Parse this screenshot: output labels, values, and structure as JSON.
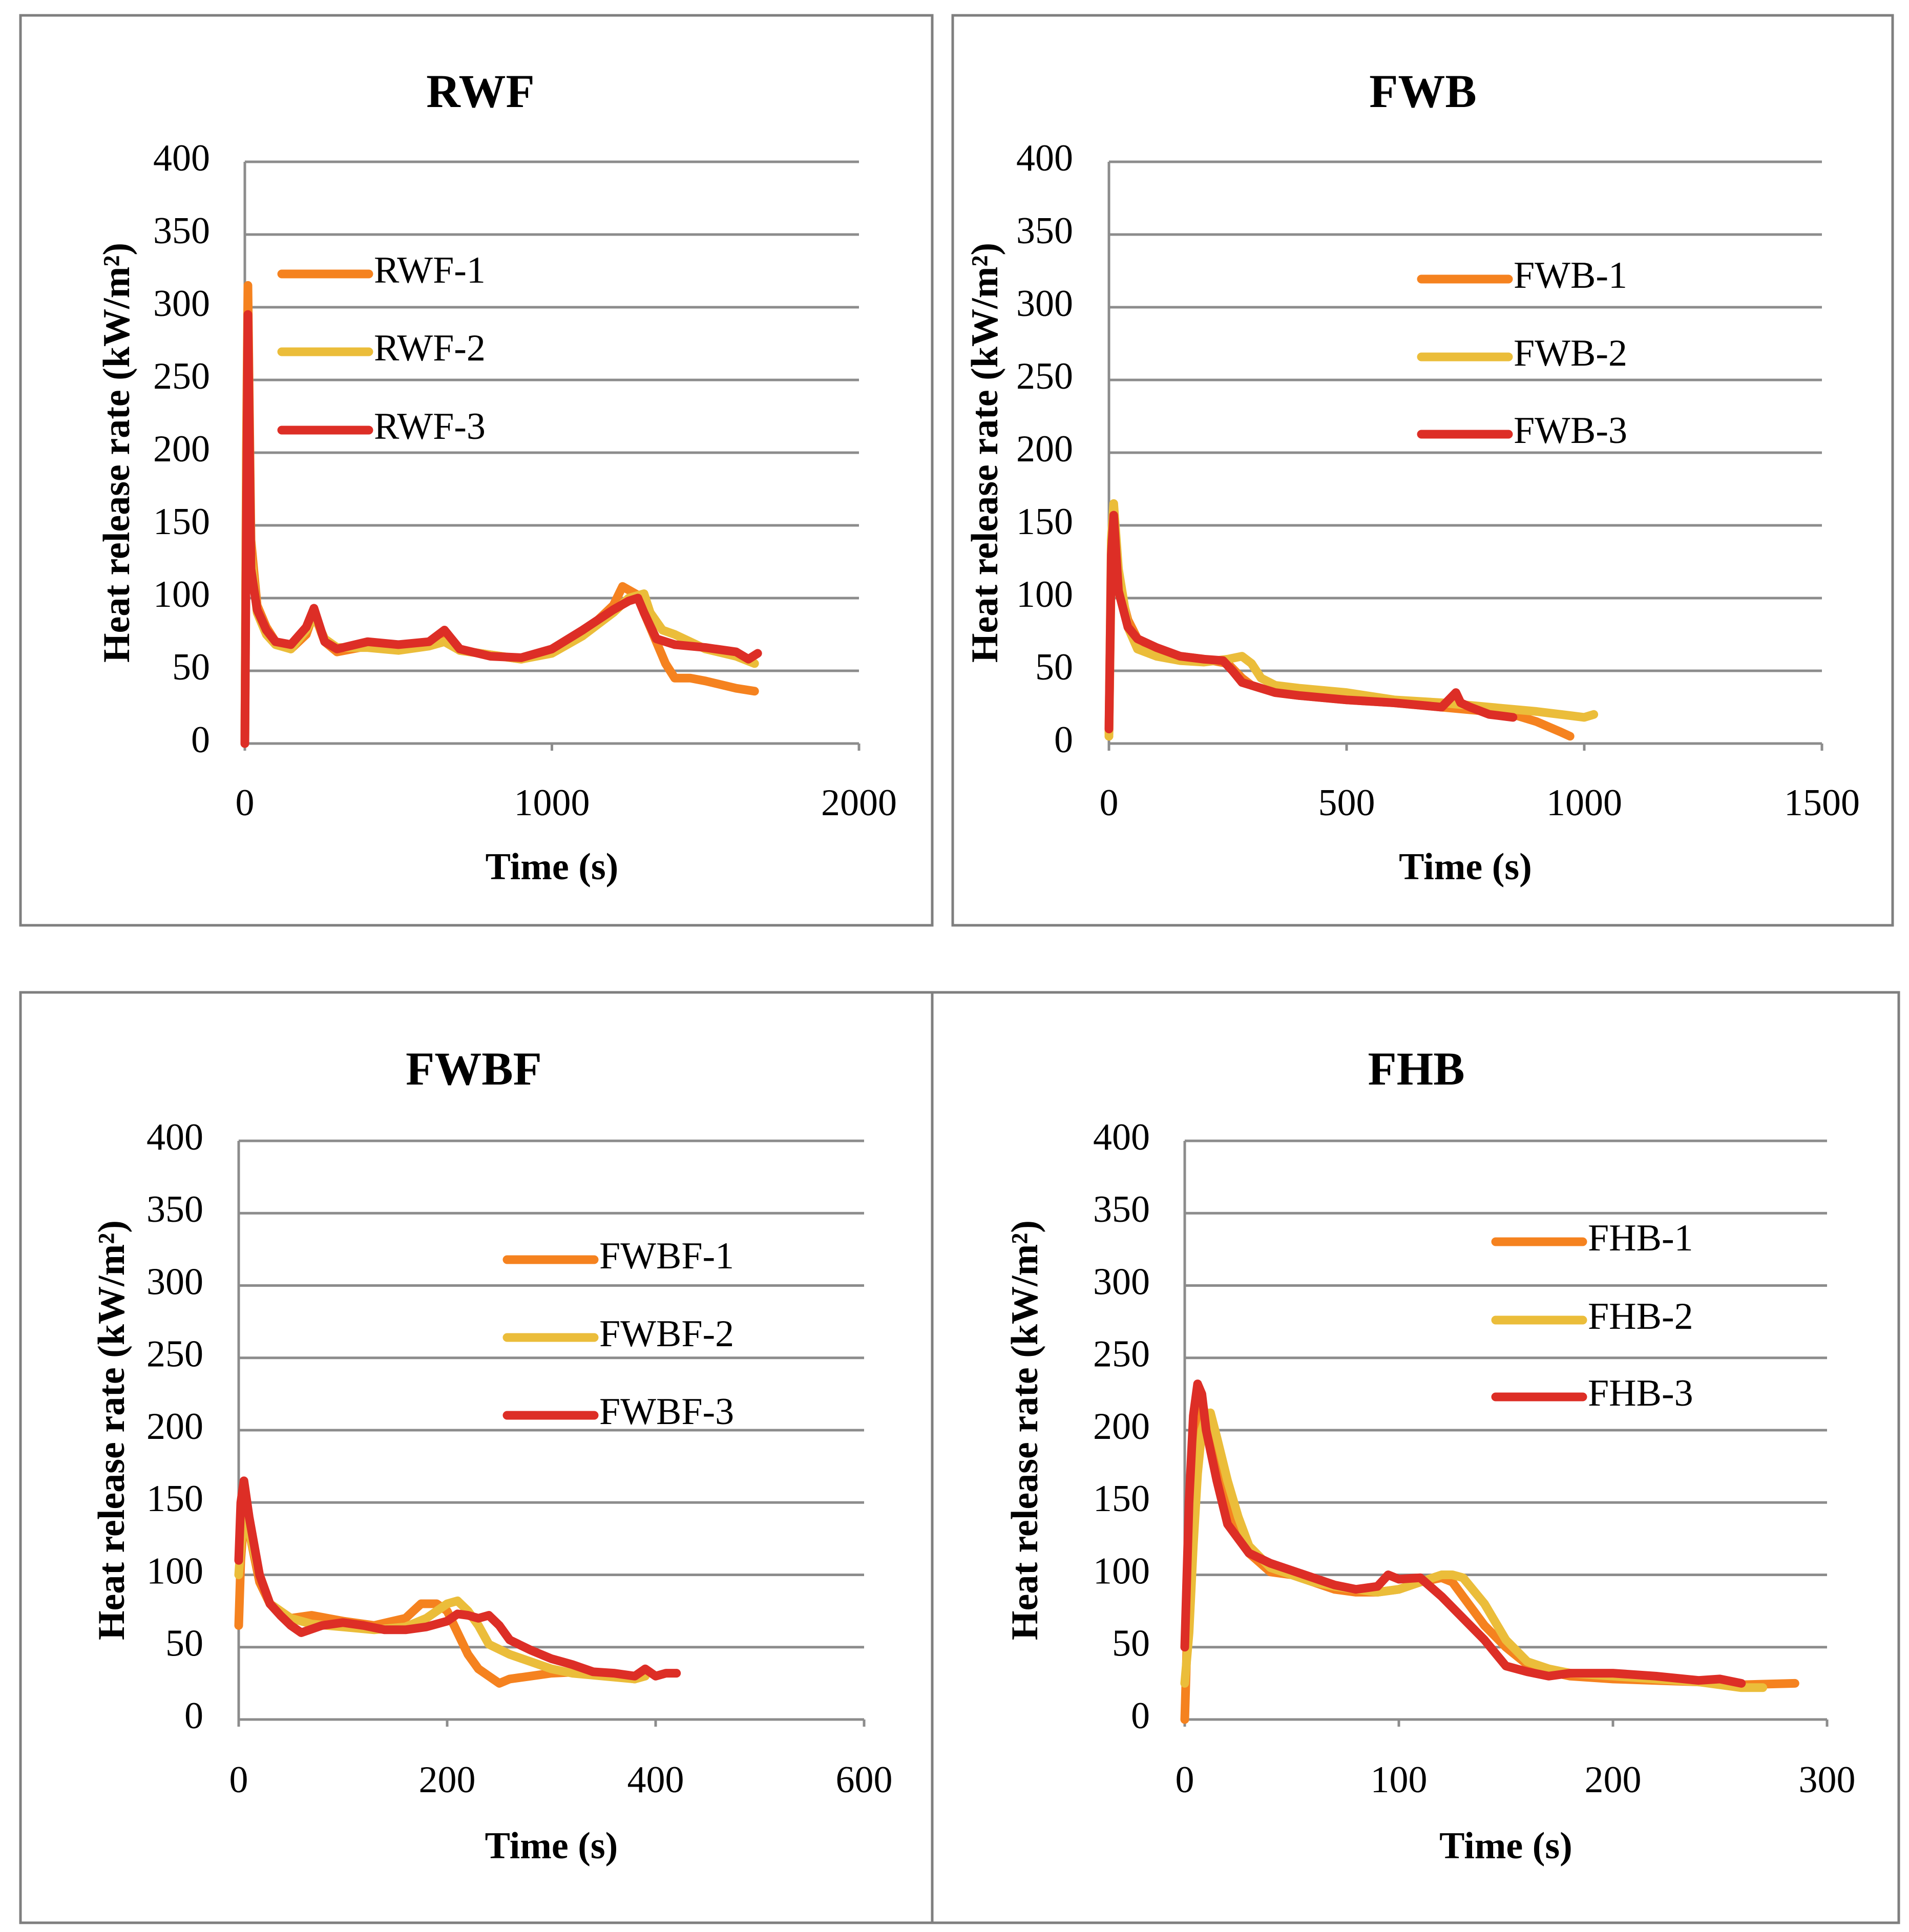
{
  "colors": {
    "series_1": "#f5821f",
    "series_2": "#ebbd3a",
    "series_3": "#dd2e26"
  },
  "chart_data": [
    {
      "type": "line",
      "title": "RWF",
      "xlabel": "Time (s)",
      "ylabel": "Heat release rate (kW/m²)",
      "xlim": [
        0,
        2000
      ],
      "ylim": [
        0,
        400
      ],
      "xticks": [
        0,
        1000,
        2000
      ],
      "yticks": [
        0,
        50,
        100,
        150,
        200,
        250,
        300,
        350,
        400
      ],
      "grid": true,
      "legend": "top-left",
      "series": [
        {
          "name": "RWF-1",
          "x": [
            0,
            5,
            10,
            20,
            40,
            70,
            100,
            150,
            200,
            225,
            260,
            300,
            400,
            500,
            600,
            650,
            700,
            800,
            900,
            1000,
            1100,
            1200,
            1230,
            1280,
            1300,
            1340,
            1370,
            1400,
            1450,
            1500,
            1600,
            1660
          ],
          "y": [
            0,
            200,
            315,
            140,
            95,
            80,
            70,
            65,
            75,
            90,
            70,
            63,
            67,
            66,
            68,
            72,
            64,
            61,
            58,
            63,
            75,
            95,
            108,
            102,
            90,
            70,
            55,
            45,
            45,
            43,
            38,
            36
          ]
        },
        {
          "name": "RWF-2",
          "x": [
            0,
            5,
            10,
            20,
            40,
            70,
            100,
            150,
            200,
            225,
            260,
            300,
            400,
            500,
            600,
            650,
            700,
            800,
            900,
            1000,
            1100,
            1200,
            1250,
            1300,
            1320,
            1360,
            1400,
            1450,
            1500,
            1600,
            1660
          ],
          "y": [
            0,
            180,
            290,
            130,
            90,
            75,
            68,
            65,
            78,
            88,
            72,
            66,
            66,
            64,
            67,
            70,
            64,
            61,
            58,
            62,
            74,
            90,
            100,
            103,
            90,
            78,
            75,
            70,
            65,
            60,
            55
          ]
        },
        {
          "name": "RWF-3",
          "x": [
            0,
            5,
            10,
            20,
            40,
            70,
            100,
            150,
            200,
            225,
            260,
            300,
            400,
            500,
            600,
            650,
            700,
            800,
            900,
            1000,
            1100,
            1200,
            1250,
            1280,
            1300,
            1340,
            1400,
            1500,
            1600,
            1640,
            1670
          ],
          "y": [
            0,
            150,
            295,
            120,
            92,
            78,
            70,
            68,
            80,
            93,
            70,
            65,
            70,
            68,
            70,
            78,
            65,
            60,
            59,
            65,
            78,
            92,
            98,
            100,
            90,
            72,
            68,
            66,
            63,
            58,
            62
          ]
        }
      ]
    },
    {
      "type": "line",
      "title": "FWB",
      "xlabel": "Time (s)",
      "ylabel": "Heat release rate (kW/m²)",
      "xlim": [
        0,
        1500
      ],
      "ylim": [
        0,
        400
      ],
      "xticks": [
        0,
        500,
        1000,
        1500
      ],
      "yticks": [
        0,
        50,
        100,
        150,
        200,
        250,
        300,
        350,
        400
      ],
      "grid": true,
      "legend": "top-right",
      "series": [
        {
          "name": "FWB-1",
          "x": [
            0,
            5,
            10,
            20,
            40,
            60,
            100,
            150,
            200,
            250,
            280,
            300,
            350,
            400,
            500,
            600,
            700,
            800,
            850,
            900,
            950,
            970
          ],
          "y": [
            5,
            120,
            150,
            110,
            85,
            72,
            65,
            60,
            58,
            55,
            45,
            40,
            35,
            33,
            30,
            28,
            25,
            22,
            20,
            15,
            8,
            5
          ]
        },
        {
          "name": "FWB-2",
          "x": [
            0,
            5,
            10,
            20,
            40,
            60,
            100,
            150,
            200,
            250,
            280,
            300,
            320,
            350,
            400,
            500,
            600,
            700,
            800,
            900,
            950,
            1000,
            1020
          ],
          "y": [
            5,
            140,
            165,
            120,
            80,
            65,
            60,
            57,
            56,
            58,
            60,
            55,
            45,
            40,
            38,
            35,
            30,
            28,
            25,
            22,
            20,
            18,
            20
          ]
        },
        {
          "name": "FWB-3",
          "x": [
            0,
            5,
            10,
            20,
            40,
            60,
            100,
            150,
            200,
            240,
            260,
            280,
            300,
            350,
            400,
            500,
            600,
            700,
            730,
            740,
            760,
            800,
            850
          ],
          "y": [
            10,
            130,
            157,
            105,
            80,
            72,
            66,
            60,
            58,
            57,
            50,
            42,
            40,
            35,
            33,
            30,
            28,
            25,
            35,
            28,
            25,
            20,
            18
          ]
        }
      ]
    },
    {
      "type": "line",
      "title": "FWBF",
      "xlabel": "Time (s)",
      "ylabel": "Heat release rate (kW/m²)",
      "xlim": [
        0,
        600
      ],
      "ylim": [
        0,
        400
      ],
      "xticks": [
        0,
        200,
        400,
        600
      ],
      "yticks": [
        0,
        50,
        100,
        150,
        200,
        250,
        300,
        350,
        400
      ],
      "grid": true,
      "legend": "top-right",
      "series": [
        {
          "name": "FWBF-1",
          "x": [
            0,
            2,
            5,
            10,
            20,
            30,
            50,
            70,
            100,
            130,
            160,
            175,
            190,
            200,
            210,
            220,
            230,
            240,
            250,
            260,
            280,
            300,
            330,
            360,
            380
          ],
          "y": [
            65,
            110,
            140,
            130,
            95,
            80,
            70,
            72,
            68,
            65,
            70,
            80,
            80,
            75,
            60,
            45,
            35,
            30,
            25,
            28,
            30,
            32,
            33,
            30,
            28
          ]
        },
        {
          "name": "FWBF-2",
          "x": [
            0,
            2,
            5,
            10,
            20,
            30,
            50,
            70,
            100,
            130,
            160,
            180,
            200,
            210,
            220,
            230,
            240,
            260,
            280,
            300,
            320,
            350,
            380,
            390
          ],
          "y": [
            100,
            120,
            140,
            130,
            100,
            80,
            70,
            66,
            64,
            62,
            64,
            70,
            80,
            82,
            75,
            65,
            52,
            45,
            40,
            35,
            32,
            30,
            28,
            30
          ]
        },
        {
          "name": "FWBF-3",
          "x": [
            0,
            2,
            5,
            10,
            20,
            30,
            40,
            50,
            60,
            80,
            100,
            120,
            140,
            160,
            180,
            200,
            210,
            220,
            230,
            240,
            250,
            260,
            280,
            300,
            320,
            340,
            360,
            380,
            390,
            400,
            410,
            420
          ],
          "y": [
            110,
            150,
            165,
            140,
            100,
            80,
            72,
            65,
            60,
            65,
            67,
            65,
            62,
            62,
            64,
            68,
            73,
            72,
            70,
            72,
            65,
            55,
            48,
            42,
            38,
            33,
            32,
            30,
            35,
            30,
            32,
            32
          ]
        }
      ]
    },
    {
      "type": "line",
      "title": "FHB",
      "xlabel": "Time (s)",
      "ylabel": "Heat release rate (kW/m²)",
      "xlim": [
        0,
        300
      ],
      "ylim": [
        0,
        400
      ],
      "xticks": [
        0,
        100,
        200,
        300
      ],
      "yticks": [
        0,
        50,
        100,
        150,
        200,
        250,
        300,
        350,
        400
      ],
      "grid": true,
      "legend": "top-right",
      "series": [
        {
          "name": "FHB-1",
          "x": [
            0,
            2,
            4,
            6,
            8,
            10,
            15,
            20,
            25,
            30,
            40,
            50,
            60,
            70,
            80,
            90,
            100,
            110,
            120,
            125,
            130,
            140,
            150,
            160,
            170,
            180,
            200,
            220,
            240,
            260,
            285
          ],
          "y": [
            0,
            100,
            180,
            215,
            218,
            210,
            180,
            150,
            130,
            115,
            102,
            100,
            95,
            90,
            88,
            88,
            90,
            95,
            98,
            95,
            85,
            65,
            50,
            38,
            33,
            30,
            28,
            27,
            26,
            24,
            25
          ]
        },
        {
          "name": "FHB-2",
          "x": [
            0,
            2,
            4,
            6,
            8,
            10,
            12,
            15,
            20,
            25,
            30,
            40,
            50,
            60,
            70,
            80,
            90,
            100,
            110,
            120,
            125,
            130,
            140,
            150,
            160,
            170,
            180,
            200,
            220,
            240,
            260,
            270
          ],
          "y": [
            25,
            60,
            120,
            170,
            200,
            210,
            212,
            195,
            165,
            140,
            120,
            105,
            100,
            95,
            92,
            90,
            88,
            90,
            95,
            100,
            100,
            98,
            80,
            55,
            40,
            35,
            32,
            30,
            28,
            26,
            22,
            22
          ]
        },
        {
          "name": "FHB-3",
          "x": [
            0,
            2,
            4,
            6,
            8,
            10,
            15,
            20,
            25,
            30,
            40,
            50,
            60,
            70,
            80,
            90,
            95,
            100,
            110,
            120,
            130,
            140,
            150,
            160,
            170,
            180,
            200,
            220,
            240,
            250,
            260
          ],
          "y": [
            50,
            150,
            210,
            232,
            225,
            200,
            165,
            135,
            125,
            115,
            108,
            103,
            98,
            93,
            90,
            92,
            100,
            97,
            98,
            85,
            70,
            55,
            37,
            33,
            30,
            32,
            32,
            30,
            27,
            28,
            25
          ]
        }
      ]
    }
  ]
}
